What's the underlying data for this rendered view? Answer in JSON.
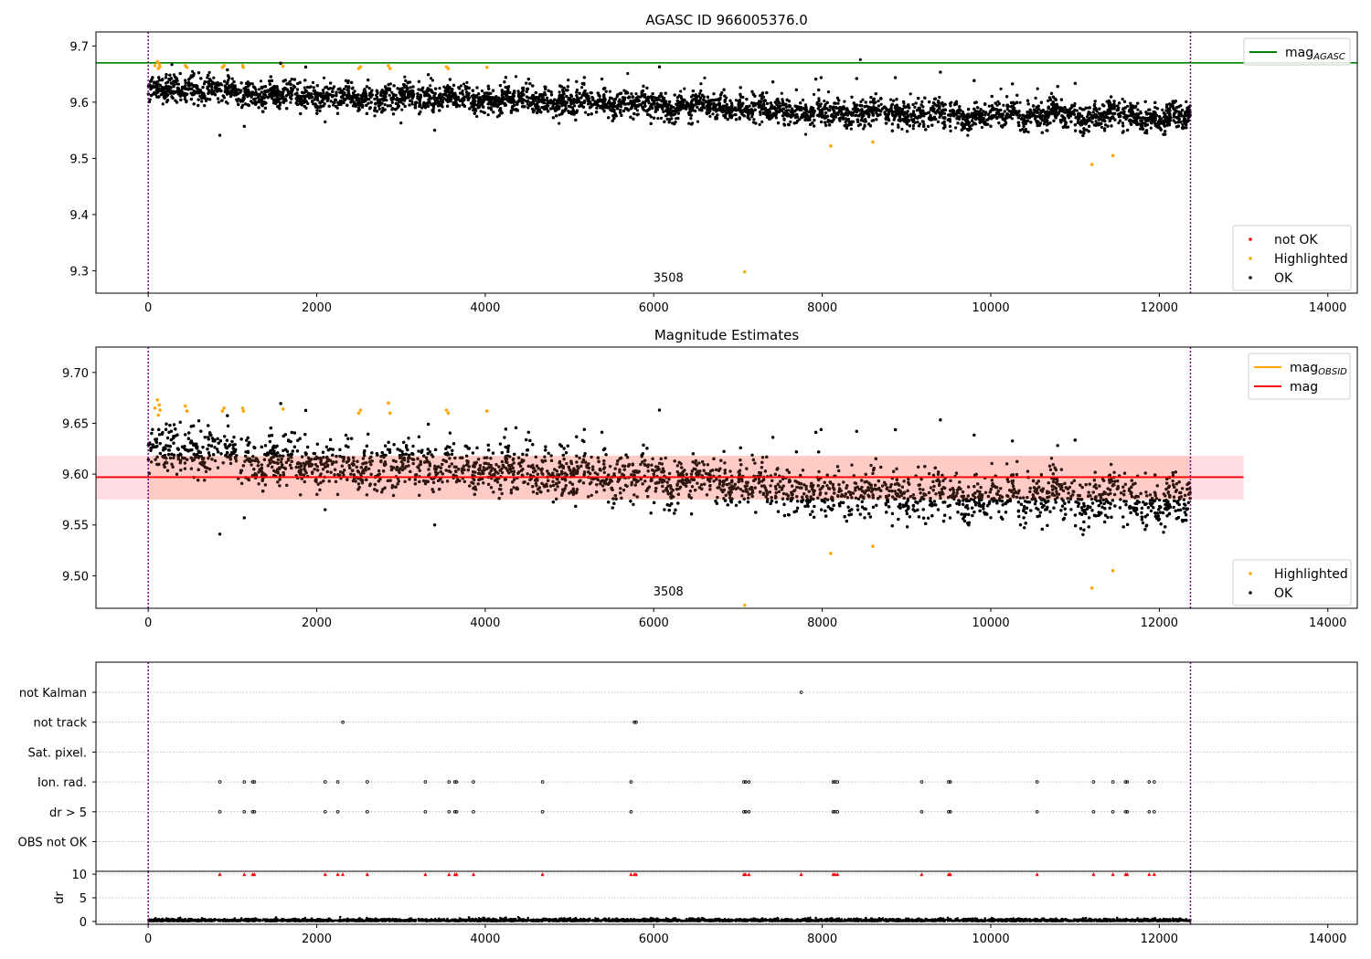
{
  "chart_data": [
    {
      "type": "scatter",
      "title": "AGASC ID 966005376.0",
      "xlim": [
        -620,
        14350
      ],
      "ylim": [
        9.26,
        9.725
      ],
      "xticks": [
        0,
        2000,
        4000,
        6000,
        8000,
        10000,
        12000,
        14000
      ],
      "xtick_labels": [
        "0",
        "2000",
        "4000",
        "6000",
        "8000",
        "10000",
        "12000",
        "14000"
      ],
      "yticks": [
        9.3,
        9.4,
        9.5,
        9.6,
        9.7
      ],
      "ytick_labels": [
        "9.3",
        "9.4",
        "9.5",
        "9.6",
        "9.7"
      ],
      "vlines": [
        0,
        12370
      ],
      "annotation": {
        "text": "3508",
        "x": 6000,
        "y": 9.29
      },
      "mag_agasc": 9.67,
      "ok_trend": [
        [
          0,
          9.62
        ],
        [
          500,
          9.625
        ],
        [
          1000,
          9.615
        ],
        [
          2000,
          9.61
        ],
        [
          3000,
          9.608
        ],
        [
          4000,
          9.605
        ],
        [
          5000,
          9.6
        ],
        [
          6000,
          9.595
        ],
        [
          7000,
          9.59
        ],
        [
          8000,
          9.58
        ],
        [
          9000,
          9.58
        ],
        [
          10000,
          9.575
        ],
        [
          11000,
          9.578
        ],
        [
          12000,
          9.57
        ],
        [
          12370,
          9.572
        ]
      ],
      "highlighted_points": [
        [
          80,
          9.665
        ],
        [
          110,
          9.672
        ],
        [
          120,
          9.66
        ],
        [
          130,
          9.668
        ],
        [
          140,
          9.663
        ],
        [
          440,
          9.665
        ],
        [
          460,
          9.662
        ],
        [
          880,
          9.662
        ],
        [
          900,
          9.665
        ],
        [
          1120,
          9.665
        ],
        [
          1130,
          9.662
        ],
        [
          1600,
          9.664
        ],
        [
          2500,
          9.66
        ],
        [
          2520,
          9.663
        ],
        [
          2850,
          9.665
        ],
        [
          2870,
          9.66
        ],
        [
          3540,
          9.663
        ],
        [
          3560,
          9.66
        ],
        [
          4020,
          9.662
        ],
        [
          8100,
          9.522
        ],
        [
          8600,
          9.529
        ],
        [
          7080,
          9.298
        ],
        [
          11200,
          9.489
        ],
        [
          11450,
          9.505
        ]
      ],
      "ok_outliers": [
        [
          850,
          9.541
        ],
        [
          1140,
          9.557
        ],
        [
          3400,
          9.55
        ],
        [
          2100,
          9.565
        ],
        [
          3000,
          9.563
        ]
      ],
      "legend_upper": [
        {
          "label": "mag",
          "sub": "AGASC",
          "color": "#008000",
          "kind": "line"
        }
      ],
      "legend_lower": [
        {
          "label": "not OK",
          "color": "#ff0000",
          "kind": "point"
        },
        {
          "label": "Highlighted",
          "color": "#ffa500",
          "kind": "point"
        },
        {
          "label": "OK",
          "color": "#000000",
          "kind": "point"
        }
      ]
    },
    {
      "type": "scatter",
      "title": "Magnitude Estimates",
      "xlim": [
        -620,
        14350
      ],
      "ylim": [
        9.468,
        9.725
      ],
      "xticks": [
        0,
        2000,
        4000,
        6000,
        8000,
        10000,
        12000,
        14000
      ],
      "xtick_labels": [
        "0",
        "2000",
        "4000",
        "6000",
        "8000",
        "10000",
        "12000",
        "14000"
      ],
      "yticks": [
        9.5,
        9.55,
        9.6,
        9.65,
        9.7
      ],
      "ytick_labels": [
        "9.50",
        "9.55",
        "9.60",
        "9.65",
        "9.70"
      ],
      "vlines": [
        0,
        12370
      ],
      "annotation": {
        "text": "3508",
        "x": 6000,
        "y": 9.475
      },
      "mag": 9.597,
      "mag_band": [
        9.575,
        9.618
      ],
      "band_xlim": [
        -620,
        13000
      ],
      "mag_obsid_segments": [
        [
          0,
          3000,
          9.617
        ],
        [
          3000,
          5000,
          9.608
        ],
        [
          5000,
          7000,
          9.597
        ],
        [
          7000,
          9000,
          9.58
        ],
        [
          9000,
          11000,
          9.577
        ],
        [
          11000,
          12370,
          9.573
        ]
      ],
      "highlighted_points": [
        [
          80,
          9.665
        ],
        [
          110,
          9.673
        ],
        [
          120,
          9.658
        ],
        [
          130,
          9.668
        ],
        [
          140,
          9.663
        ],
        [
          440,
          9.667
        ],
        [
          460,
          9.662
        ],
        [
          880,
          9.662
        ],
        [
          900,
          9.665
        ],
        [
          1120,
          9.665
        ],
        [
          1130,
          9.662
        ],
        [
          1600,
          9.664
        ],
        [
          2500,
          9.66
        ],
        [
          2520,
          9.663
        ],
        [
          2850,
          9.67
        ],
        [
          2870,
          9.66
        ],
        [
          3540,
          9.663
        ],
        [
          3560,
          9.66
        ],
        [
          4020,
          9.662
        ],
        [
          8100,
          9.522
        ],
        [
          8600,
          9.529
        ],
        [
          7080,
          9.471
        ],
        [
          11200,
          9.488
        ],
        [
          11450,
          9.505
        ]
      ],
      "ok_outliers": [
        [
          850,
          9.541
        ],
        [
          1140,
          9.557
        ],
        [
          3400,
          9.55
        ],
        [
          2100,
          9.565
        ]
      ],
      "legend_upper": [
        {
          "label": "mag",
          "sub": "OBSID",
          "color": "#ffa500",
          "kind": "line"
        },
        {
          "label": "mag",
          "sub": "",
          "color": "#ff0000",
          "kind": "line"
        }
      ],
      "legend_lower": [
        {
          "label": "Highlighted",
          "color": "#ffa500",
          "kind": "point"
        },
        {
          "label": "OK",
          "color": "#000000",
          "kind": "point"
        }
      ]
    },
    {
      "type": "scatter",
      "xlim": [
        -620,
        14350
      ],
      "xticks": [
        0,
        2000,
        4000,
        6000,
        8000,
        10000,
        12000,
        14000
      ],
      "xtick_labels": [
        "0",
        "2000",
        "4000",
        "6000",
        "8000",
        "10000",
        "12000",
        "14000"
      ],
      "vlines": [
        0,
        12370
      ],
      "flag_rows": [
        "not Kalman",
        "not track",
        "Sat. pixel.",
        "Ion. rad.",
        "dr > 5",
        "OBS not OK"
      ],
      "flags": {
        "not Kalman": [
          7750
        ],
        "not track": [
          2310,
          5770,
          5790
        ],
        "Sat. pixel.": [],
        "Ion. rad.": [
          850,
          1140,
          1240,
          1260,
          2100,
          2250,
          2600,
          3290,
          3570,
          3640,
          3660,
          3860,
          4680,
          5730,
          7070,
          7090,
          7130,
          8130,
          8150,
          8180,
          9180,
          9500,
          9520,
          10550,
          11220,
          11450,
          11600,
          11620,
          11880,
          11940
        ],
        "dr > 5": [
          850,
          1140,
          1240,
          1260,
          2100,
          2250,
          2600,
          3290,
          3570,
          3640,
          3660,
          3860,
          4680,
          5730,
          7070,
          7090,
          7130,
          8130,
          8150,
          8180,
          9180,
          9500,
          9520,
          10550,
          11220,
          11450,
          11600,
          11620,
          11880,
          11940
        ],
        "OBS not OK": []
      },
      "dr_panel": {
        "ylabel": "dr",
        "yticks": [
          0,
          5,
          10
        ],
        "ytick_labels": [
          "0",
          "5",
          "10"
        ],
        "ylim": [
          -0.6,
          10.6
        ],
        "clipped_at": 10,
        "clipped_x": [
          850,
          1140,
          1240,
          1260,
          2100,
          2250,
          2310,
          2600,
          3290,
          3570,
          3640,
          3660,
          3860,
          4680,
          5730,
          5770,
          5790,
          7070,
          7090,
          7130,
          7750,
          8130,
          8150,
          8180,
          9180,
          9500,
          9520,
          10550,
          11220,
          11450,
          11600,
          11620,
          11880,
          11940
        ],
        "typical_dr": 0.3
      }
    }
  ]
}
